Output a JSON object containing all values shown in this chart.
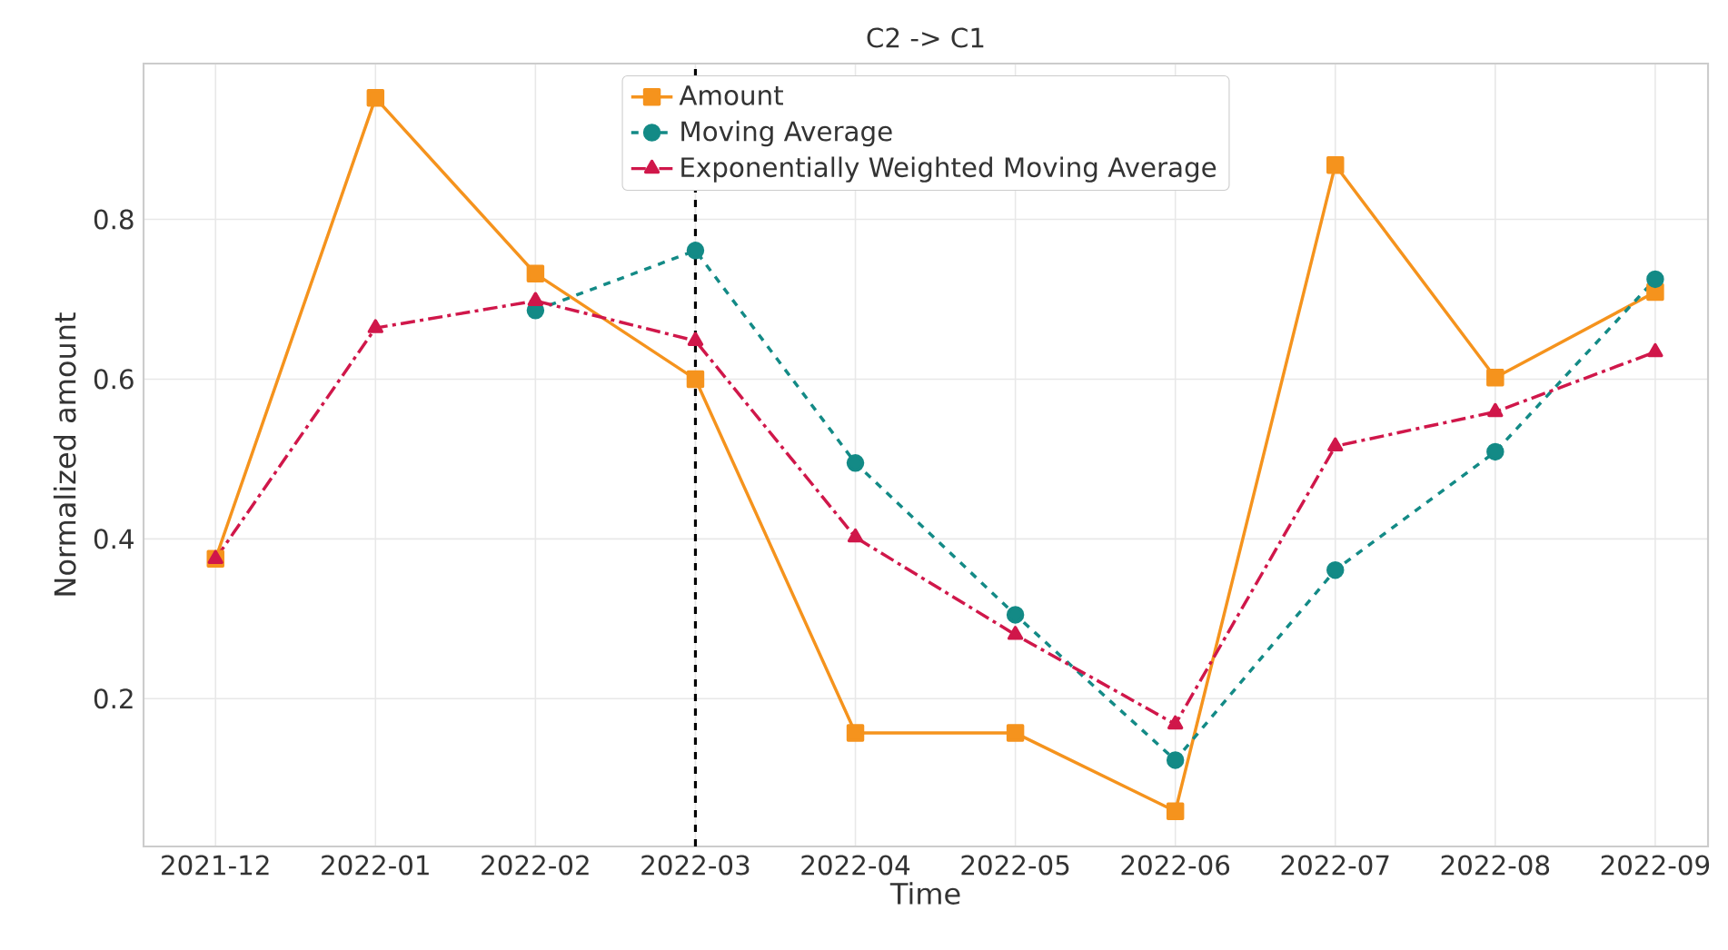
{
  "chart_data": {
    "type": "line",
    "title": "C2 -> C1",
    "xlabel": "Time",
    "ylabel": "Normalized amount",
    "categories": [
      "2021-12",
      "2022-01",
      "2022-02",
      "2022-03",
      "2022-04",
      "2022-05",
      "2022-06",
      "2022-07",
      "2022-08",
      "2022-09"
    ],
    "series": [
      {
        "name": "Amount",
        "color": "#f5931d",
        "marker": "square",
        "line_style": "solid",
        "values": [
          0.375,
          0.952,
          0.732,
          0.6,
          0.157,
          0.157,
          0.059,
          0.868,
          0.602,
          0.709
        ]
      },
      {
        "name": "Moving Average",
        "color": "#138a86",
        "marker": "circle",
        "line_style": "dashed",
        "values": [
          null,
          null,
          0.686,
          0.761,
          0.495,
          0.305,
          0.123,
          0.361,
          0.509,
          0.725
        ]
      },
      {
        "name": "Exponentially Weighted Moving Average",
        "color": "#d0174a",
        "marker": "triangle",
        "line_style": "dashdot",
        "values": [
          0.375,
          0.664,
          0.698,
          0.648,
          0.402,
          0.28,
          0.168,
          0.516,
          0.559,
          0.634
        ]
      }
    ],
    "ylim": [
      0.015,
      0.995
    ],
    "yticks": [
      0.2,
      0.4,
      0.6,
      0.8
    ],
    "grid": true,
    "legend": "top",
    "ref_lines": [
      {
        "axis": "x",
        "value": "2022-03",
        "color": "#000000",
        "line_style": "dashed"
      }
    ]
  }
}
